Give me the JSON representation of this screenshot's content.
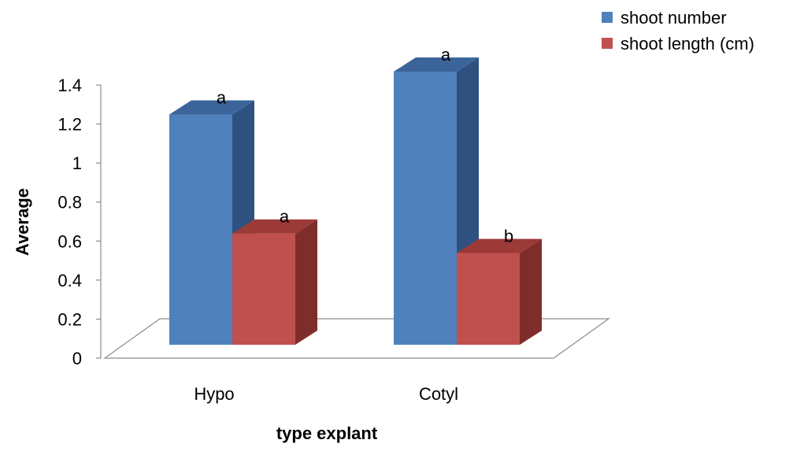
{
  "chart_data": {
    "type": "bar",
    "variant": "3d-clustered-column",
    "categories": [
      "Hypo",
      "Cotyl"
    ],
    "series": [
      {
        "name": "shoot number",
        "values": [
          1.18,
          1.4
        ],
        "labels": [
          "a",
          "a"
        ],
        "color": "#4F81BD",
        "side_color": "#2F5180",
        "top_color": "#3B659A"
      },
      {
        "name": "shoot length (cm)",
        "values": [
          0.57,
          0.47
        ],
        "labels": [
          "a",
          "b"
        ],
        "color": "#C0504D",
        "side_color": "#7F2D2B",
        "top_color": "#9C3A37"
      }
    ],
    "title": "",
    "xlabel": "type explant",
    "ylabel": "Average",
    "ylim": [
      0,
      1.4
    ],
    "yticks": [
      "0",
      "0.2",
      "0.4",
      "0.6",
      "0.8",
      "1",
      "1.2",
      "1.4"
    ],
    "grid": false,
    "legend_position": "top-right"
  }
}
